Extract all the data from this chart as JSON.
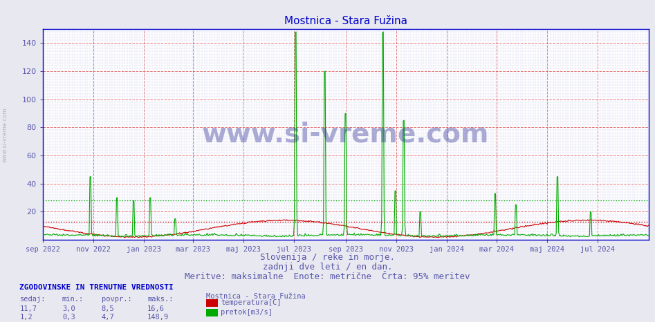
{
  "title": "Mostnica - Stara Fužina",
  "title_color": "#0000cc",
  "title_fontsize": 11,
  "bg_color": "#e8e8f0",
  "plot_bg_color": "#ffffff",
  "ylim": [
    0,
    150
  ],
  "yticks": [
    20,
    40,
    60,
    80,
    100,
    120,
    140
  ],
  "hline_red_y": 13.0,
  "hline_green_y": 28.0,
  "hline_red_color": "#cc0000",
  "hline_green_color": "#00aa00",
  "grid_major_color": "#dd5555",
  "grid_minor_color": "#ccccee",
  "temp_color": "#cc0000",
  "flow_color": "#00aa00",
  "axis_color": "#0000cc",
  "tick_label_color": "#5555aa",
  "watermark_text": "www.si-vreme.com",
  "watermark_color": "#1a1a8c",
  "watermark_alpha": 0.35,
  "watermark_fontsize": 28,
  "subtitle1": "Slovenija / reke in morje.",
  "subtitle2": "zadnji dve leti / en dan.",
  "subtitle3": "Meritve: maksimalne  Enote: metrične  Črta: 95% meritev",
  "subtitle_color": "#5555aa",
  "subtitle_fontsize": 9,
  "info_header": "ZGODOVINSKE IN TRENUTNE VREDNOSTI",
  "info_header_color": "#0000cc",
  "col_headers": [
    "sedaj:",
    "min.:",
    "povpr.:",
    "maks.:"
  ],
  "row1_values": [
    "11,7",
    "3,0",
    "8,5",
    "16,6"
  ],
  "row2_values": [
    "1,2",
    "0,3",
    "4,7",
    "148,9"
  ],
  "legend_title": "Mostnica - Stara Fužina",
  "legend_temp_label": "temperatura[C]",
  "legend_flow_label": "pretok[m3/s]",
  "xticklabels": [
    "sep 2022",
    "nov 2022",
    "jan 2023",
    "mar 2023",
    "maj 2023",
    "jul 2023",
    "sep 2023",
    "nov 2023",
    "jan 2024",
    "mar 2024",
    "maj 2024",
    "jul 2024"
  ],
  "xtick_positions": [
    0,
    61,
    122,
    181,
    242,
    303,
    365,
    426,
    487,
    547,
    608,
    669
  ],
  "left_label": "www.si-vreme.com"
}
